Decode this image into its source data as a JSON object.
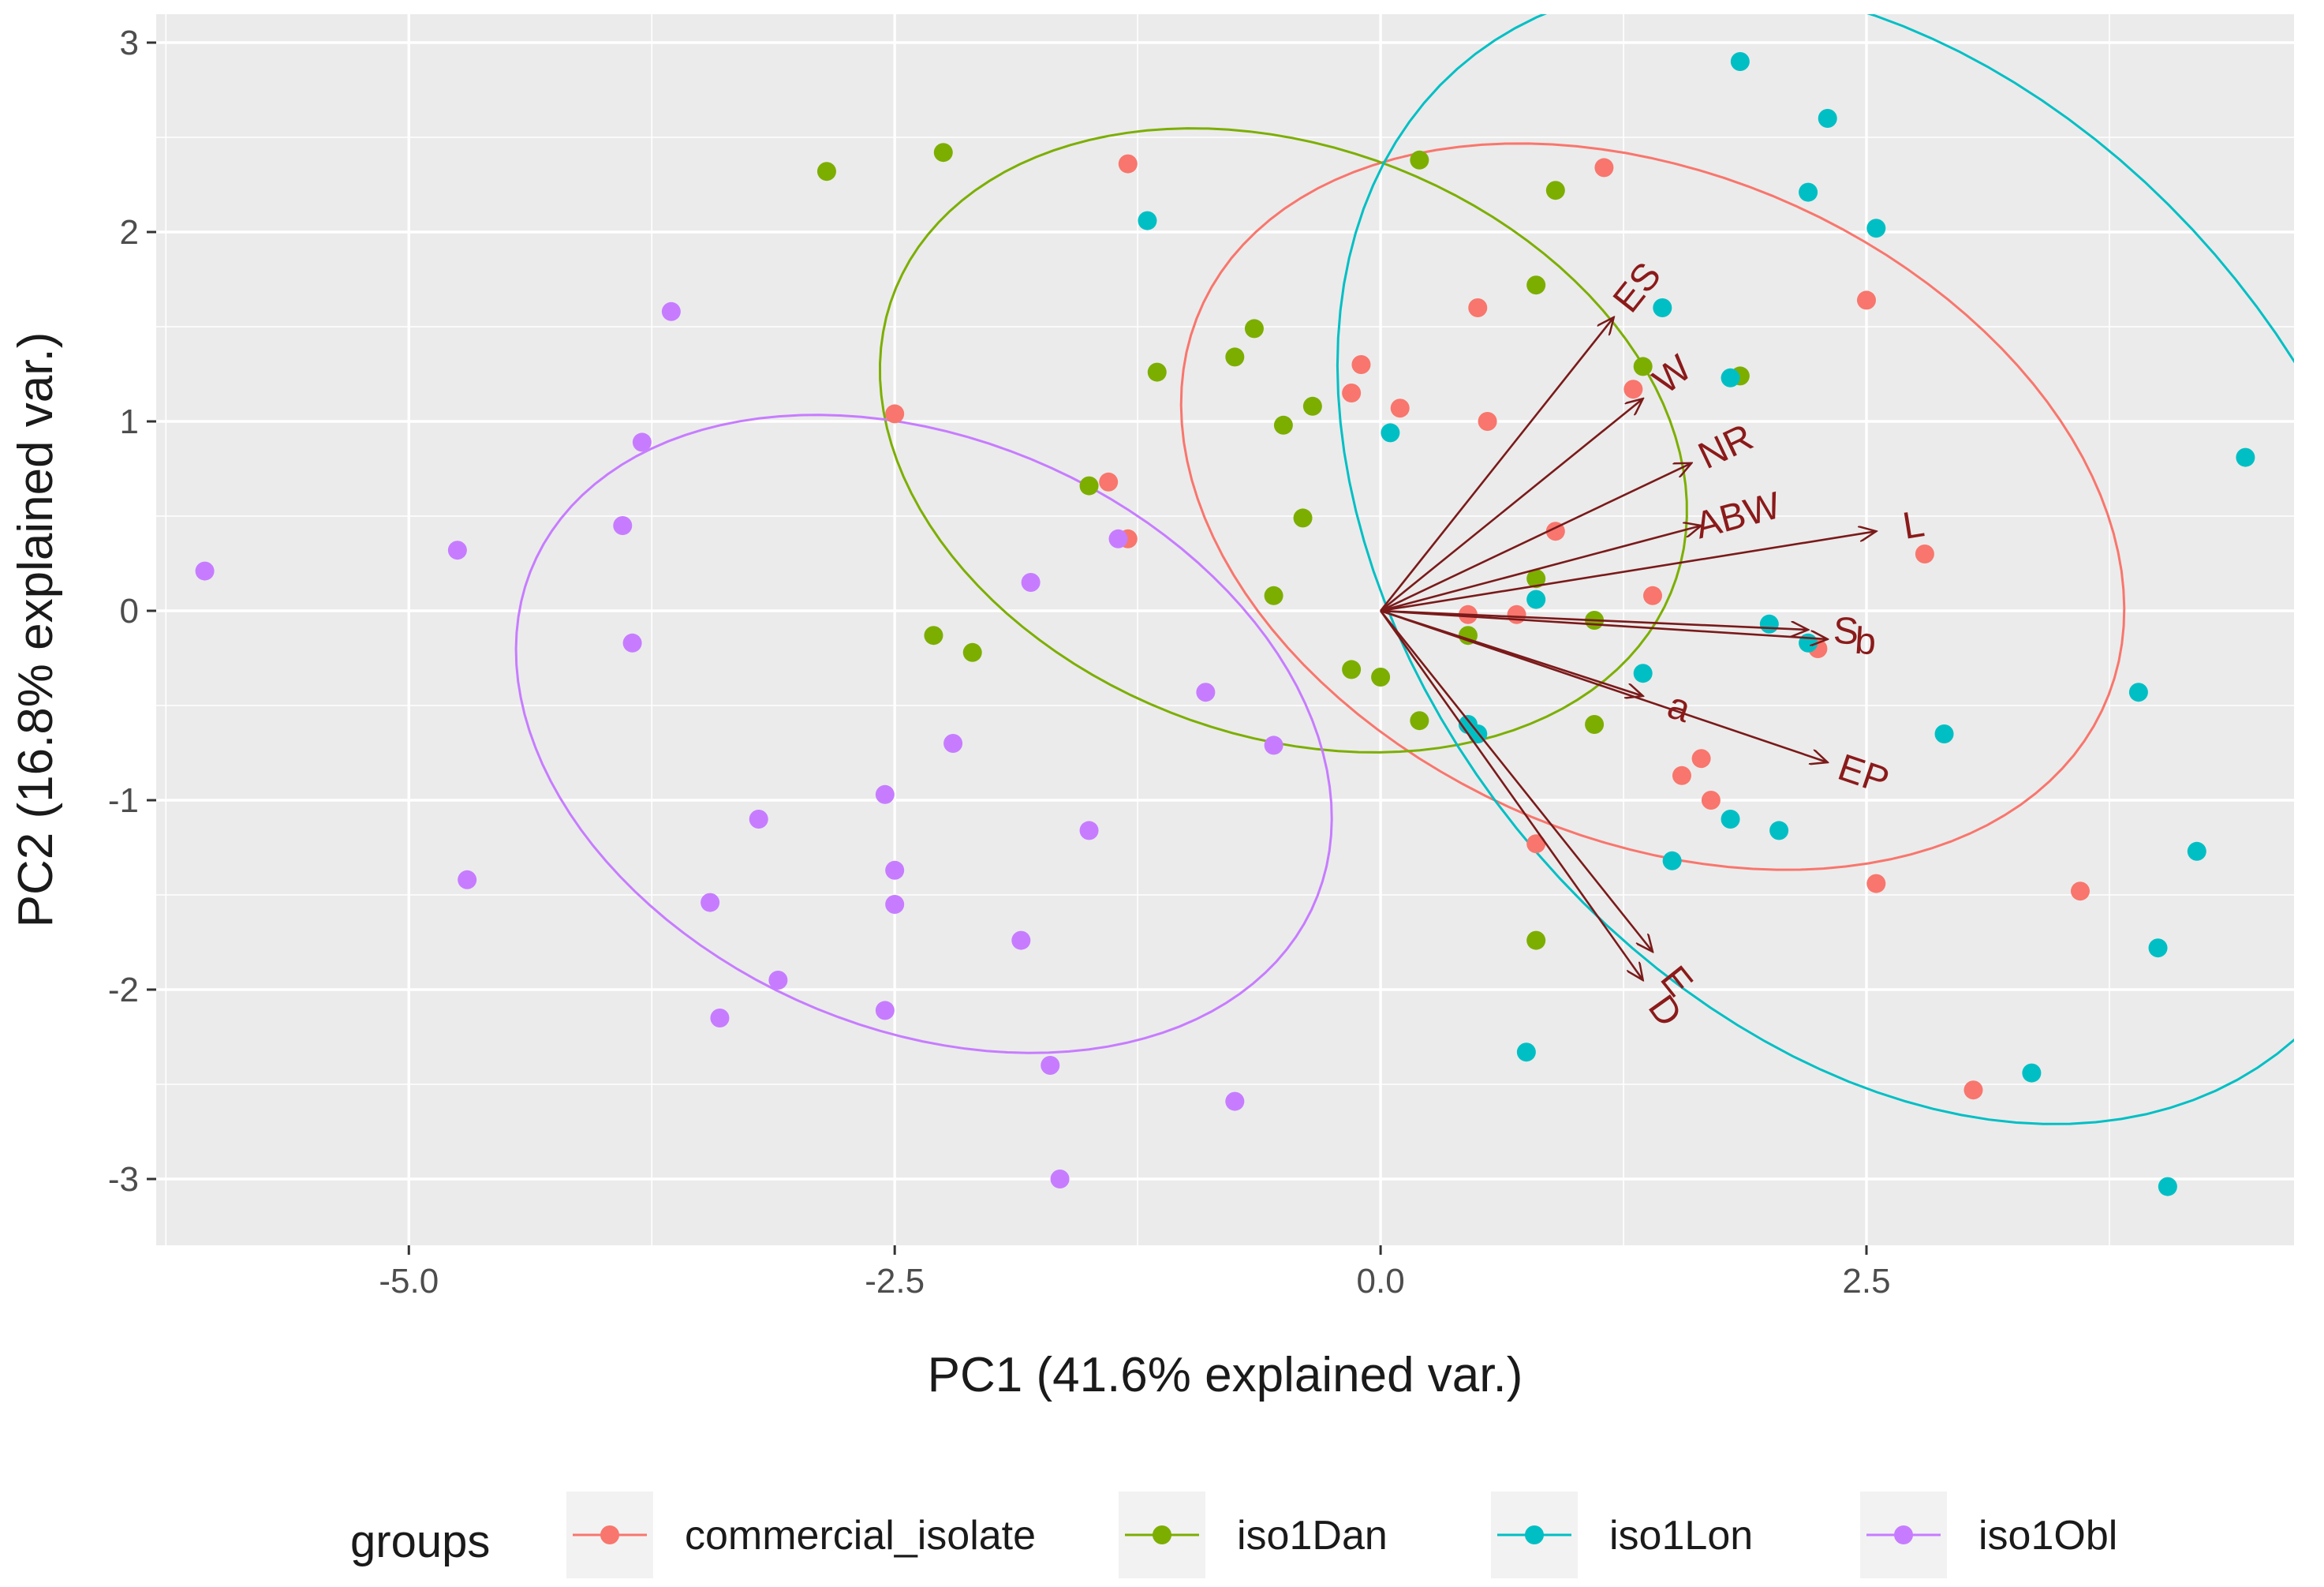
{
  "chart_data": {
    "type": "scatter",
    "title": "",
    "xlabel": "PC1 (41.6% explained var.)",
    "ylabel": "PC2 (16.8% explained var.)",
    "xlim": [
      -6.3,
      4.7
    ],
    "ylim": [
      -3.35,
      3.15
    ],
    "xticks": [
      -5.0,
      -2.5,
      0.0,
      2.5
    ],
    "xtick_labels": [
      "-5.0",
      "-2.5",
      "0.0",
      "2.5"
    ],
    "yticks": [
      3,
      2,
      1,
      0,
      -1,
      -2,
      -3
    ],
    "ytick_labels": [
      "3",
      "2",
      "1",
      "0",
      "-1",
      "-2",
      "-3"
    ],
    "grid": true,
    "legend": {
      "title": "groups",
      "position": "bottom",
      "entries": [
        "commercial_isolate",
        "iso1Dan",
        "iso1Lon",
        "iso1Obl"
      ]
    },
    "series": [
      {
        "name": "commercial_isolate",
        "color": "#F8766D",
        "points": [
          [
            -1.3,
            2.36
          ],
          [
            1.15,
            2.34
          ],
          [
            -2.5,
            1.04
          ],
          [
            0.5,
            1.6
          ],
          [
            -0.1,
            1.3
          ],
          [
            0.1,
            1.07
          ],
          [
            -0.15,
            1.15
          ],
          [
            0.55,
            1.0
          ],
          [
            1.3,
            1.17
          ],
          [
            -1.4,
            0.68
          ],
          [
            -1.3,
            0.38
          ],
          [
            0.9,
            0.42
          ],
          [
            2.5,
            1.64
          ],
          [
            2.8,
            0.3
          ],
          [
            1.4,
            0.08
          ],
          [
            0.45,
            -0.02
          ],
          [
            0.7,
            -0.02
          ],
          [
            2.25,
            -0.2
          ],
          [
            1.65,
            -0.78
          ],
          [
            1.55,
            -0.87
          ],
          [
            1.7,
            -1.0
          ],
          [
            0.8,
            -1.23
          ],
          [
            2.55,
            -1.44
          ],
          [
            3.6,
            -1.48
          ],
          [
            3.05,
            -2.53
          ]
        ],
        "ellipse": {
          "cx": 1.4,
          "cy": 0.55,
          "rx": 2.55,
          "ry": 1.75,
          "angle_deg": -25
        }
      },
      {
        "name": "iso1Dan",
        "color": "#7CAE00",
        "points": [
          [
            -2.85,
            2.32
          ],
          [
            -2.25,
            2.42
          ],
          [
            0.2,
            2.38
          ],
          [
            0.9,
            2.22
          ],
          [
            0.8,
            1.72
          ],
          [
            -0.65,
            1.49
          ],
          [
            -0.75,
            1.34
          ],
          [
            -1.15,
            1.26
          ],
          [
            -0.5,
            0.98
          ],
          [
            -0.35,
            1.08
          ],
          [
            1.35,
            1.29
          ],
          [
            1.85,
            1.24
          ],
          [
            -1.5,
            0.66
          ],
          [
            -0.4,
            0.49
          ],
          [
            -0.55,
            0.08
          ],
          [
            0.8,
            0.17
          ],
          [
            1.1,
            -0.05
          ],
          [
            -2.3,
            -0.13
          ],
          [
            -2.1,
            -0.22
          ],
          [
            0.45,
            -0.13
          ],
          [
            -0.15,
            -0.31
          ],
          [
            0.0,
            -0.35
          ],
          [
            0.2,
            -0.58
          ],
          [
            1.1,
            -0.6
          ],
          [
            0.8,
            -1.74
          ]
        ],
        "ellipse": {
          "cx": -0.5,
          "cy": 0.9,
          "rx": 2.15,
          "ry": 1.55,
          "angle_deg": -22
        }
      },
      {
        "name": "iso1Lon",
        "color": "#00BFC4",
        "points": [
          [
            1.85,
            2.9
          ],
          [
            2.3,
            2.6
          ],
          [
            2.2,
            2.21
          ],
          [
            2.55,
            2.02
          ],
          [
            -1.2,
            2.06
          ],
          [
            1.45,
            1.6
          ],
          [
            1.8,
            1.23
          ],
          [
            0.05,
            0.94
          ],
          [
            4.45,
            0.81
          ],
          [
            0.8,
            0.06
          ],
          [
            2.0,
            -0.07
          ],
          [
            2.2,
            -0.17
          ],
          [
            1.35,
            -0.33
          ],
          [
            3.9,
            -0.43
          ],
          [
            2.9,
            -0.65
          ],
          [
            0.45,
            -0.6
          ],
          [
            0.5,
            -0.65
          ],
          [
            1.8,
            -1.1
          ],
          [
            2.05,
            -1.16
          ],
          [
            1.5,
            -1.32
          ],
          [
            4.2,
            -1.27
          ],
          [
            4.0,
            -1.78
          ],
          [
            3.35,
            -2.44
          ],
          [
            0.75,
            -2.33
          ],
          [
            4.05,
            -3.04
          ]
        ],
        "ellipse": {
          "cx": 2.55,
          "cy": 0.3,
          "rx": 3.35,
          "ry": 2.35,
          "angle_deg": -52
        }
      },
      {
        "name": "iso1Obl",
        "color": "#C77CFF",
        "points": [
          [
            -6.05,
            0.21
          ],
          [
            -4.75,
            0.32
          ],
          [
            -3.65,
            1.58
          ],
          [
            -3.8,
            0.89
          ],
          [
            -3.9,
            0.45
          ],
          [
            -3.85,
            -0.17
          ],
          [
            -1.8,
            0.15
          ],
          [
            -1.35,
            0.38
          ],
          [
            -0.9,
            -0.43
          ],
          [
            -0.55,
            -0.71
          ],
          [
            -2.2,
            -0.7
          ],
          [
            -2.55,
            -0.97
          ],
          [
            -3.2,
            -1.1
          ],
          [
            -1.5,
            -1.16
          ],
          [
            -2.5,
            -1.37
          ],
          [
            -4.7,
            -1.42
          ],
          [
            -3.45,
            -1.54
          ],
          [
            -2.5,
            -1.55
          ],
          [
            -1.85,
            -1.74
          ],
          [
            -3.1,
            -1.95
          ],
          [
            -3.4,
            -2.15
          ],
          [
            -2.55,
            -2.11
          ],
          [
            -1.7,
            -2.4
          ],
          [
            -0.75,
            -2.59
          ],
          [
            -1.65,
            -3.0
          ]
        ],
        "ellipse": {
          "cx": -2.35,
          "cy": -0.65,
          "rx": 2.2,
          "ry": 1.55,
          "angle_deg": -25
        }
      }
    ],
    "loadings": [
      {
        "name": "ES",
        "x": 1.2,
        "y": 1.55
      },
      {
        "name": "W",
        "x": 1.35,
        "y": 1.12
      },
      {
        "name": "NR",
        "x": 1.6,
        "y": 0.78
      },
      {
        "name": "ABW",
        "x": 1.65,
        "y": 0.45
      },
      {
        "name": "L",
        "x": 2.55,
        "y": 0.42
      },
      {
        "name": "S",
        "x": 2.2,
        "y": -0.1
      },
      {
        "name": "b",
        "x": 2.3,
        "y": -0.15
      },
      {
        "name": "a",
        "x": 1.35,
        "y": -0.45
      },
      {
        "name": "EP",
        "x": 2.3,
        "y": -0.8
      },
      {
        "name": "E",
        "x": 1.4,
        "y": -1.8
      },
      {
        "name": "D",
        "x": 1.35,
        "y": -1.95
      }
    ]
  }
}
